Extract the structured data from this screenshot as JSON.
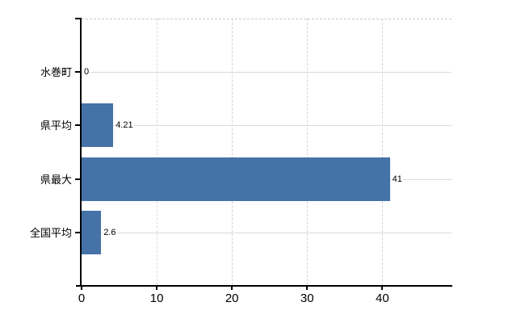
{
  "chart_data": {
    "type": "bar",
    "orientation": "horizontal",
    "title": "",
    "categories": [
      "水巻町",
      "県平均",
      "県最大",
      "全国平均"
    ],
    "values": [
      0,
      4.21,
      41,
      2.6
    ],
    "value_labels": [
      "0",
      "4.21",
      "41",
      "2.6"
    ],
    "x_ticks": [
      0,
      10,
      20,
      30,
      40
    ],
    "x_tick_labels": [
      "0",
      "10",
      "20",
      "30",
      "40"
    ],
    "xlim": [
      0,
      49.2
    ],
    "grid": true,
    "legend": false,
    "bar_color": "#4572a7",
    "axis_color": "#000000",
    "h_gridline_color": "#d7ddd7",
    "v_gridline_color": "#d4d6d4",
    "top_border_color": "#c6ccc6",
    "text_color": "#000000",
    "background_color": "#ffffff"
  }
}
